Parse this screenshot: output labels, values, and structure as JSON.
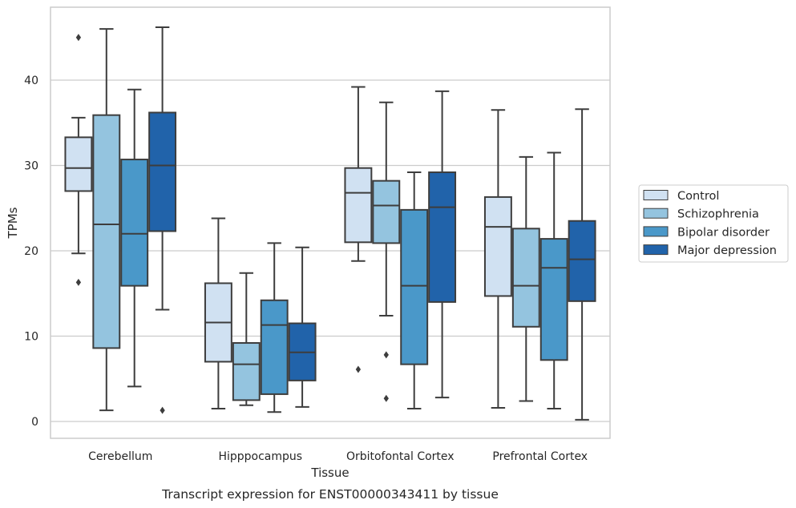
{
  "caption": "Transcript expression for ENST00000343411 by tissue",
  "chart_data": {
    "type": "box",
    "xlabel": "Tissue",
    "ylabel": "TPMs",
    "ylim": [
      -2,
      48.5
    ],
    "yticks": [
      0,
      10,
      20,
      30,
      40
    ],
    "grid": "horizontal",
    "legend_position": "right",
    "categories": [
      "Cerebellum",
      "Hipppocampus",
      "Orbitofontal Cortex",
      "Prefrontal Cortex"
    ],
    "series": [
      {
        "name": "Control",
        "color": "#d0e1f2",
        "boxes": [
          {
            "whisker_low": 19.7,
            "q1": 27.0,
            "median": 29.7,
            "q3": 33.3,
            "whisker_high": 35.6,
            "outliers": [
              16.3,
              45.0
            ]
          },
          {
            "whisker_low": 1.5,
            "q1": 7.0,
            "median": 11.6,
            "q3": 16.2,
            "whisker_high": 23.8,
            "outliers": []
          },
          {
            "whisker_low": 18.8,
            "q1": 21.0,
            "median": 26.8,
            "q3": 29.7,
            "whisker_high": 39.2,
            "outliers": [
              6.1
            ]
          },
          {
            "whisker_low": 1.6,
            "q1": 14.7,
            "median": 22.8,
            "q3": 26.3,
            "whisker_high": 36.5,
            "outliers": []
          }
        ]
      },
      {
        "name": "Schizophrenia",
        "color": "#94c4df",
        "boxes": [
          {
            "whisker_low": 1.3,
            "q1": 8.6,
            "median": 23.1,
            "q3": 35.9,
            "whisker_high": 46.0,
            "outliers": []
          },
          {
            "whisker_low": 1.9,
            "q1": 2.5,
            "median": 6.7,
            "q3": 9.2,
            "whisker_high": 17.4,
            "outliers": []
          },
          {
            "whisker_low": 12.4,
            "q1": 20.9,
            "median": 25.3,
            "q3": 28.2,
            "whisker_high": 37.4,
            "outliers": [
              7.8,
              2.7
            ]
          },
          {
            "whisker_low": 2.4,
            "q1": 11.1,
            "median": 15.9,
            "q3": 22.6,
            "whisker_high": 31.0,
            "outliers": []
          }
        ]
      },
      {
        "name": "Bipolar disorder",
        "color": "#4a98c9",
        "boxes": [
          {
            "whisker_low": 4.1,
            "q1": 15.9,
            "median": 22.0,
            "q3": 30.7,
            "whisker_high": 38.9,
            "outliers": []
          },
          {
            "whisker_low": 1.1,
            "q1": 3.2,
            "median": 11.3,
            "q3": 14.2,
            "whisker_high": 20.9,
            "outliers": []
          },
          {
            "whisker_low": 1.5,
            "q1": 6.7,
            "median": 15.9,
            "q3": 24.8,
            "whisker_high": 29.2,
            "outliers": []
          },
          {
            "whisker_low": 1.5,
            "q1": 7.2,
            "median": 18.0,
            "q3": 21.4,
            "whisker_high": 31.5,
            "outliers": []
          }
        ]
      },
      {
        "name": "Major depression",
        "color": "#2163aa",
        "boxes": [
          {
            "whisker_low": 13.1,
            "q1": 22.3,
            "median": 30.0,
            "q3": 36.2,
            "whisker_high": 46.2,
            "outliers": [
              1.3
            ]
          },
          {
            "whisker_low": 1.7,
            "q1": 4.8,
            "median": 8.1,
            "q3": 11.5,
            "whisker_high": 20.4,
            "outliers": []
          },
          {
            "whisker_low": 2.8,
            "q1": 14.0,
            "median": 25.1,
            "q3": 29.2,
            "whisker_high": 38.7,
            "outliers": []
          },
          {
            "whisker_low": 0.2,
            "q1": 14.1,
            "median": 19.0,
            "q3": 23.5,
            "whisker_high": 36.6,
            "outliers": []
          }
        ]
      }
    ]
  }
}
